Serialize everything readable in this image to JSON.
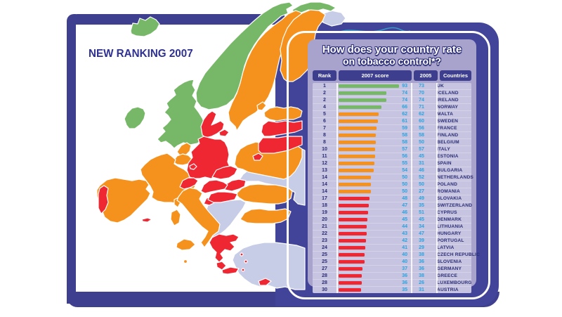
{
  "heading": "NEW RANKING 2007",
  "panel": {
    "title_line1": "How does your country rate",
    "title_line2": "on tobacco control*?"
  },
  "table": {
    "headers": [
      "Rank",
      "2007 score",
      "2005",
      "Countries"
    ],
    "rows": [
      {
        "rank": "1",
        "score2007": 93,
        "score2005": 73,
        "country": "UK",
        "tier": "green"
      },
      {
        "rank": "2",
        "score2007": 74,
        "score2005": 70,
        "country": "ICELAND",
        "tier": "green"
      },
      {
        "rank": "2",
        "score2007": 74,
        "score2005": 74,
        "country": "IRELAND",
        "tier": "green"
      },
      {
        "rank": "4",
        "score2007": 66,
        "score2005": 71,
        "country": "NORWAY",
        "tier": "green"
      },
      {
        "rank": "5",
        "score2007": 62,
        "score2005": 62,
        "country": "MALTA",
        "tier": "orange"
      },
      {
        "rank": "6",
        "score2007": 61,
        "score2005": 60,
        "country": "SWEDEN",
        "tier": "orange"
      },
      {
        "rank": "7",
        "score2007": 59,
        "score2005": 56,
        "country": "FRANCE",
        "tier": "orange"
      },
      {
        "rank": "8",
        "score2007": 58,
        "score2005": 58,
        "country": "FINLAND",
        "tier": "orange"
      },
      {
        "rank": "8",
        "score2007": 58,
        "score2005": 50,
        "country": "BELGIUM",
        "tier": "orange"
      },
      {
        "rank": "10",
        "score2007": 57,
        "score2005": 57,
        "country": "ITALY",
        "tier": "orange"
      },
      {
        "rank": "11",
        "score2007": 56,
        "score2005": 45,
        "country": "ESTONIA",
        "tier": "orange"
      },
      {
        "rank": "12",
        "score2007": 55,
        "score2005": 31,
        "country": "SPAIN",
        "tier": "orange"
      },
      {
        "rank": "13",
        "score2007": 54,
        "score2005": 46,
        "country": "BULGARIA",
        "tier": "orange"
      },
      {
        "rank": "14",
        "score2007": 50,
        "score2005": 52,
        "country": "NETHERLANDS",
        "tier": "orange"
      },
      {
        "rank": "14",
        "score2007": 50,
        "score2005": 50,
        "country": "POLAND",
        "tier": "orange"
      },
      {
        "rank": "14",
        "score2007": 50,
        "score2005": 27,
        "country": "ROMANIA",
        "tier": "orange"
      },
      {
        "rank": "17",
        "score2007": 48,
        "score2005": 49,
        "country": "SLOVAKIA",
        "tier": "red"
      },
      {
        "rank": "18",
        "score2007": 47,
        "score2005": 35,
        "country": "SWITZERLAND",
        "tier": "red"
      },
      {
        "rank": "19",
        "score2007": 46,
        "score2005": 51,
        "country": "CYPRUS",
        "tier": "red"
      },
      {
        "rank": "20",
        "score2007": 45,
        "score2005": 45,
        "country": "DENMARK",
        "tier": "red"
      },
      {
        "rank": "21",
        "score2007": 44,
        "score2005": 34,
        "country": "LITHUANIA",
        "tier": "red"
      },
      {
        "rank": "22",
        "score2007": 43,
        "score2005": 47,
        "country": "HUNGARY",
        "tier": "red"
      },
      {
        "rank": "23",
        "score2007": 42,
        "score2005": 39,
        "country": "PORTUGAL",
        "tier": "red"
      },
      {
        "rank": "24",
        "score2007": 41,
        "score2005": 29,
        "country": "LATVIA",
        "tier": "red"
      },
      {
        "rank": "25",
        "score2007": 40,
        "score2005": 38,
        "country": "CZECH REPUBLIC",
        "tier": "red"
      },
      {
        "rank": "25",
        "score2007": 40,
        "score2005": 36,
        "country": "SLOVENIA",
        "tier": "red"
      },
      {
        "rank": "27",
        "score2007": 37,
        "score2005": 36,
        "country": "GERMANY",
        "tier": "red"
      },
      {
        "rank": "28",
        "score2007": 36,
        "score2005": 38,
        "country": "GREECE",
        "tier": "red"
      },
      {
        "rank": "28",
        "score2007": 36,
        "score2005": 26,
        "country": "LUXEMBOURG",
        "tier": "red"
      },
      {
        "rank": "30",
        "score2007": 35,
        "score2005": 31,
        "country": "AUSTRIA",
        "tier": "red"
      }
    ]
  },
  "colors": {
    "green": "#77b868",
    "orange": "#f5921e",
    "red": "#ef2733",
    "non_eu_pale": "#c7cde7",
    "navy": "#42449a",
    "lavender": "#a7a3cd",
    "score_blue": "#29a3e0"
  },
  "map": {
    "green_countries": [
      "ICELAND",
      "NORWAY",
      "UK",
      "IRELAND"
    ],
    "orange_countries": [
      "SWEDEN",
      "FINLAND",
      "ESTONIA",
      "POLAND",
      "NETHERLANDS",
      "BELGIUM",
      "FRANCE",
      "SPAIN",
      "ITALY",
      "ROMANIA",
      "BULGARIA",
      "MALTA"
    ],
    "red_countries": [
      "DENMARK",
      "GERMANY",
      "CZECH REPUBLIC",
      "SLOVAKIA",
      "AUSTRIA",
      "SWITZERLAND",
      "SLOVENIA",
      "HUNGARY",
      "LUXEMBOURG",
      "LATVIA",
      "LITHUANIA",
      "PORTUGAL",
      "GREECE",
      "CYPRUS"
    ]
  },
  "chart_data": {
    "type": "bar",
    "title": "How does your country rate on tobacco control*? — NEW RANKING 2007",
    "categories": [
      "UK",
      "ICELAND",
      "IRELAND",
      "NORWAY",
      "MALTA",
      "SWEDEN",
      "FRANCE",
      "FINLAND",
      "BELGIUM",
      "ITALY",
      "ESTONIA",
      "SPAIN",
      "BULGARIA",
      "NETHERLANDS",
      "POLAND",
      "ROMANIA",
      "SLOVAKIA",
      "SWITZERLAND",
      "CYPRUS",
      "DENMARK",
      "LITHUANIA",
      "HUNGARY",
      "PORTUGAL",
      "LATVIA",
      "CZECH REPUBLIC",
      "SLOVENIA",
      "GERMANY",
      "GREECE",
      "LUXEMBOURG",
      "AUSTRIA"
    ],
    "ranks": [
      1,
      2,
      2,
      4,
      5,
      6,
      7,
      8,
      8,
      10,
      11,
      12,
      13,
      14,
      14,
      14,
      17,
      18,
      19,
      20,
      21,
      22,
      23,
      24,
      25,
      25,
      27,
      28,
      28,
      30
    ],
    "series": [
      {
        "name": "2007 score",
        "values": [
          93,
          74,
          74,
          66,
          62,
          61,
          59,
          58,
          58,
          57,
          56,
          55,
          54,
          50,
          50,
          50,
          48,
          47,
          46,
          45,
          44,
          43,
          42,
          41,
          40,
          40,
          37,
          36,
          36,
          35
        ]
      },
      {
        "name": "2005",
        "values": [
          73,
          70,
          74,
          71,
          62,
          60,
          56,
          58,
          50,
          57,
          45,
          31,
          46,
          52,
          50,
          27,
          49,
          35,
          51,
          45,
          34,
          47,
          39,
          29,
          38,
          36,
          36,
          38,
          26,
          31
        ]
      }
    ],
    "bar_color_by_rank": {
      "ranks_1_4": "green",
      "ranks_5_16": "orange",
      "ranks_17_30": "red"
    },
    "xlim": [
      0,
      100
    ],
    "orientation": "horizontal"
  }
}
